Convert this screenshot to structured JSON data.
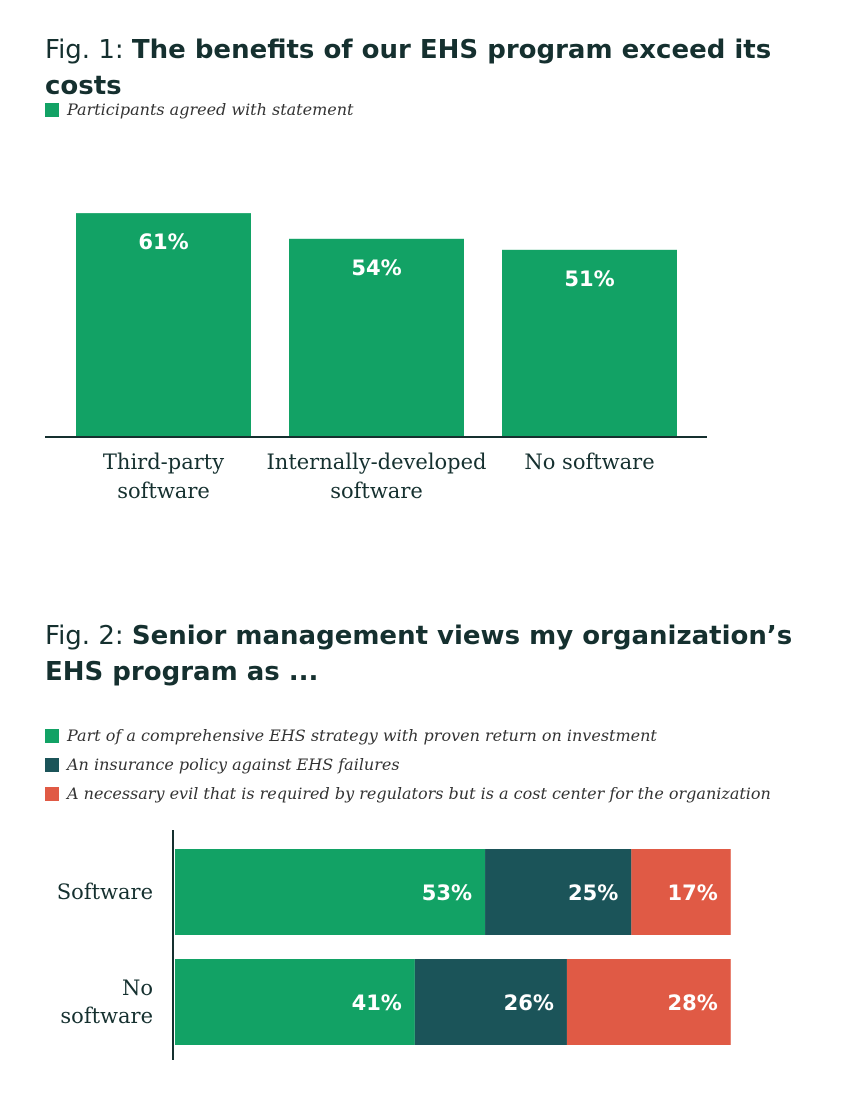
{
  "figures": [
    {
      "prefix": "Fig. 1: ",
      "title": "The benefits of our EHS program exceed its costs",
      "legend": [
        {
          "label": "Participants agreed with statement",
          "color": "#12a265"
        }
      ]
    },
    {
      "prefix": "Fig. 2: ",
      "title": "Senior management views my organization’s EHS program as ...",
      "legend": [
        {
          "label": "Part of a comprehensive EHS strategy with proven return on investment",
          "color": "#12a265"
        },
        {
          "label": "An insurance policy against EHS failures",
          "color": "#1b5459"
        },
        {
          "label": "A necessary evil that is required by regulators but is a cost center for the organization",
          "color": "#e05a45"
        }
      ]
    }
  ],
  "chart_data": [
    {
      "type": "bar",
      "title": "The benefits of our EHS program exceed its costs",
      "categories": [
        [
          "Third-party",
          "software"
        ],
        [
          "Internally-developed",
          "software"
        ],
        [
          "No software"
        ]
      ],
      "series": [
        {
          "name": "Participants agreed with statement",
          "values": [
            61,
            54,
            51
          ],
          "color": "#12a265"
        }
      ],
      "data_labels": [
        "61%",
        "54%",
        "51%"
      ],
      "ylim": [
        0,
        100
      ]
    },
    {
      "type": "bar",
      "orientation": "horizontal",
      "stacked": true,
      "title": "Senior management views my organization’s EHS program as ...",
      "categories": [
        [
          "Software"
        ],
        [
          "No",
          "software"
        ]
      ],
      "series": [
        {
          "name": "Part of a comprehensive EHS strategy with proven return on investment",
          "values": [
            53,
            41
          ],
          "color": "#12a265",
          "labels": [
            "53%",
            "41%"
          ]
        },
        {
          "name": "An insurance policy against EHS failures",
          "values": [
            25,
            26
          ],
          "color": "#1b5459",
          "labels": [
            "25%",
            "26%"
          ]
        },
        {
          "name": "A necessary evil that is required by regulators but is a cost center for the organization",
          "values": [
            17,
            28
          ],
          "color": "#e05a45",
          "labels": [
            "17%",
            "28%"
          ]
        }
      ]
    }
  ]
}
